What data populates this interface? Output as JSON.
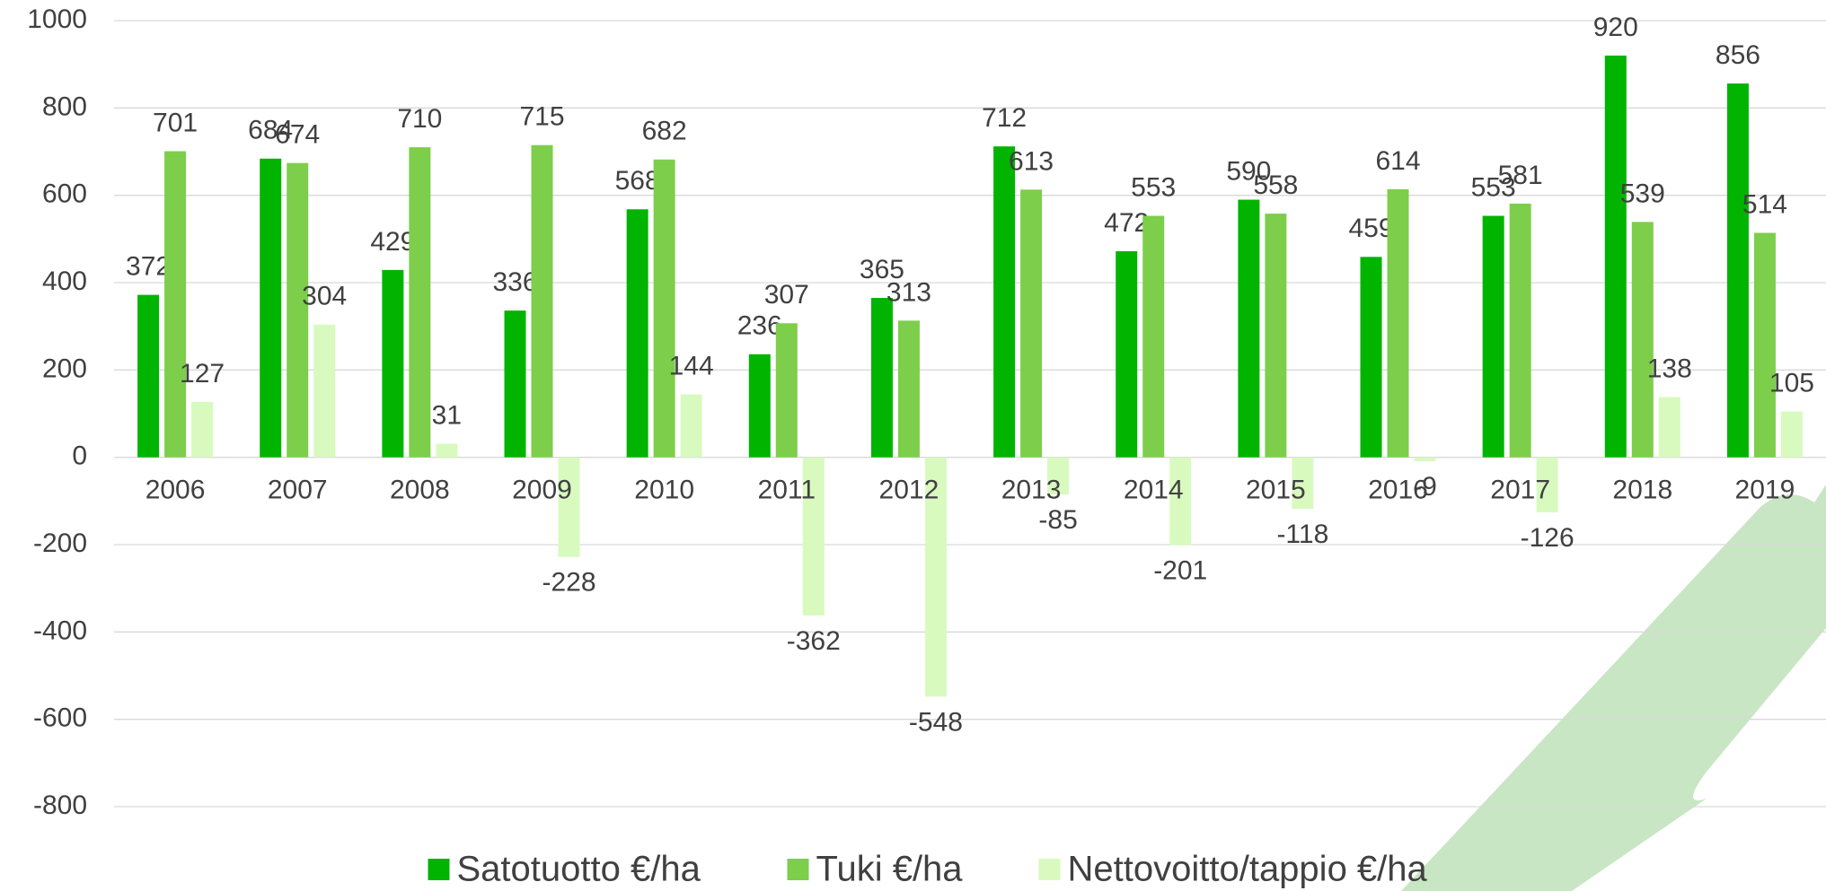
{
  "chart_data": {
    "type": "bar",
    "categories": [
      "2006",
      "2007",
      "2008",
      "2009",
      "2010",
      "2011",
      "2012",
      "2013",
      "2014",
      "2015",
      "2016",
      "2017",
      "2018",
      "2019"
    ],
    "series": [
      {
        "name": "Satotuotto €/ha",
        "color": "#00b400",
        "values": [
          372,
          684,
          429,
          336,
          568,
          236,
          365,
          712,
          472,
          590,
          459,
          553,
          920,
          856
        ]
      },
      {
        "name": "Tuki €/ha",
        "color": "#7dce4b",
        "values": [
          701,
          674,
          710,
          715,
          682,
          307,
          313,
          613,
          553,
          558,
          614,
          581,
          539,
          514
        ]
      },
      {
        "name": "Nettovoitto/tappio €/ha",
        "color": "#d8fabf",
        "values": [
          127,
          304,
          31,
          -228,
          144,
          -362,
          -548,
          -85,
          -201,
          -118,
          -9,
          -126,
          138,
          105
        ]
      }
    ],
    "ylim": [
      -800,
      1000
    ],
    "yticks": [
      -800,
      -600,
      -400,
      -200,
      0,
      200,
      400,
      600,
      800,
      1000
    ],
    "grid": true,
    "legend": "bottom"
  }
}
